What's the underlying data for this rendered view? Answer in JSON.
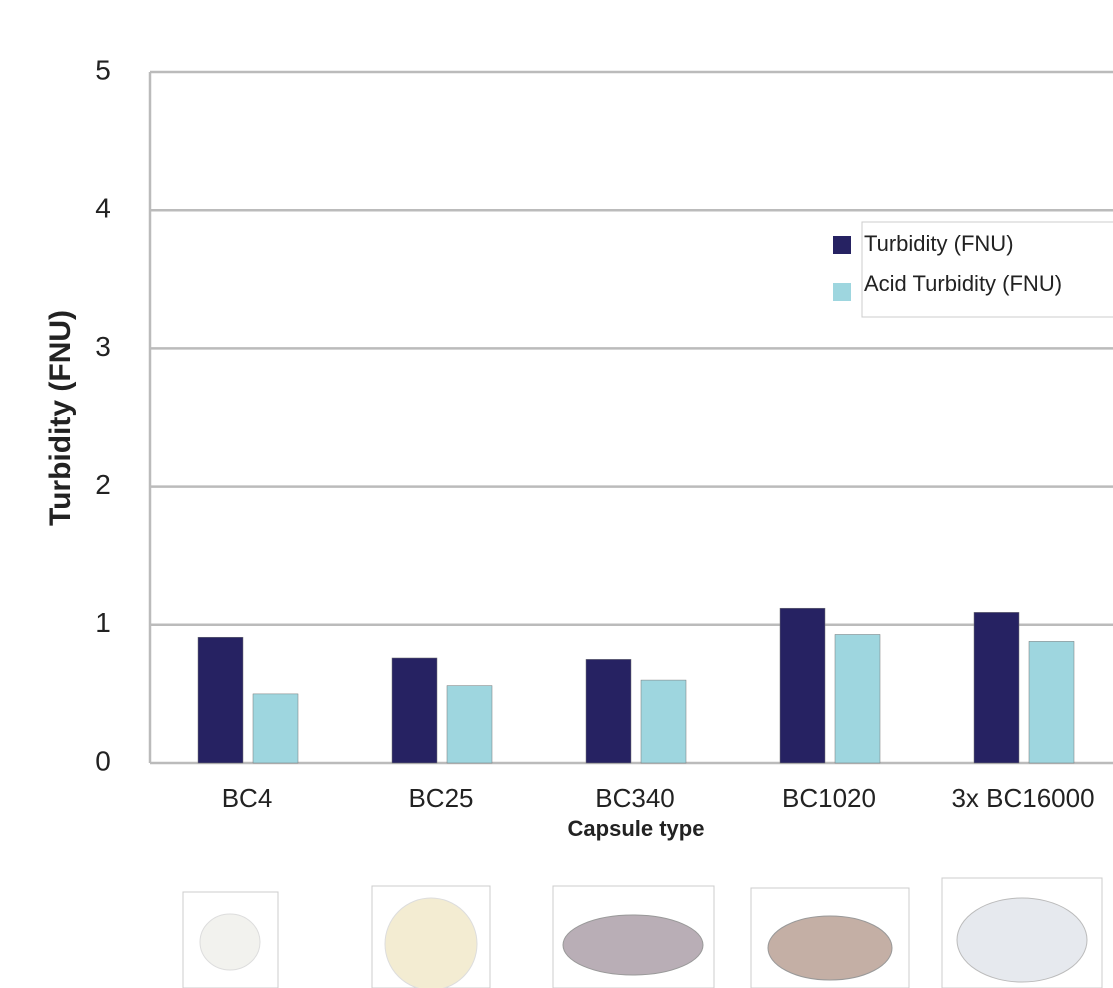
{
  "chart_data": {
    "type": "bar",
    "y_label": "Turbidity (FNU)",
    "x_label": "Capsule type",
    "categories": [
      "BC4",
      "BC25",
      "BC340",
      "BC1020",
      "3x BC16000"
    ],
    "series": [
      {
        "name": "Turbidity (FNU)",
        "color": "#262262",
        "values": [
          0.91,
          0.76,
          0.75,
          1.12,
          1.09
        ]
      },
      {
        "name": "Acid Turbidity (FNU)",
        "color": "#9ed6df",
        "values": [
          0.5,
          0.56,
          0.6,
          0.93,
          0.88
        ]
      }
    ],
    "ylim": [
      0,
      5
    ],
    "yticks": [
      0,
      1,
      2,
      3,
      4,
      5
    ],
    "grid": true,
    "legend": "upper right"
  }
}
